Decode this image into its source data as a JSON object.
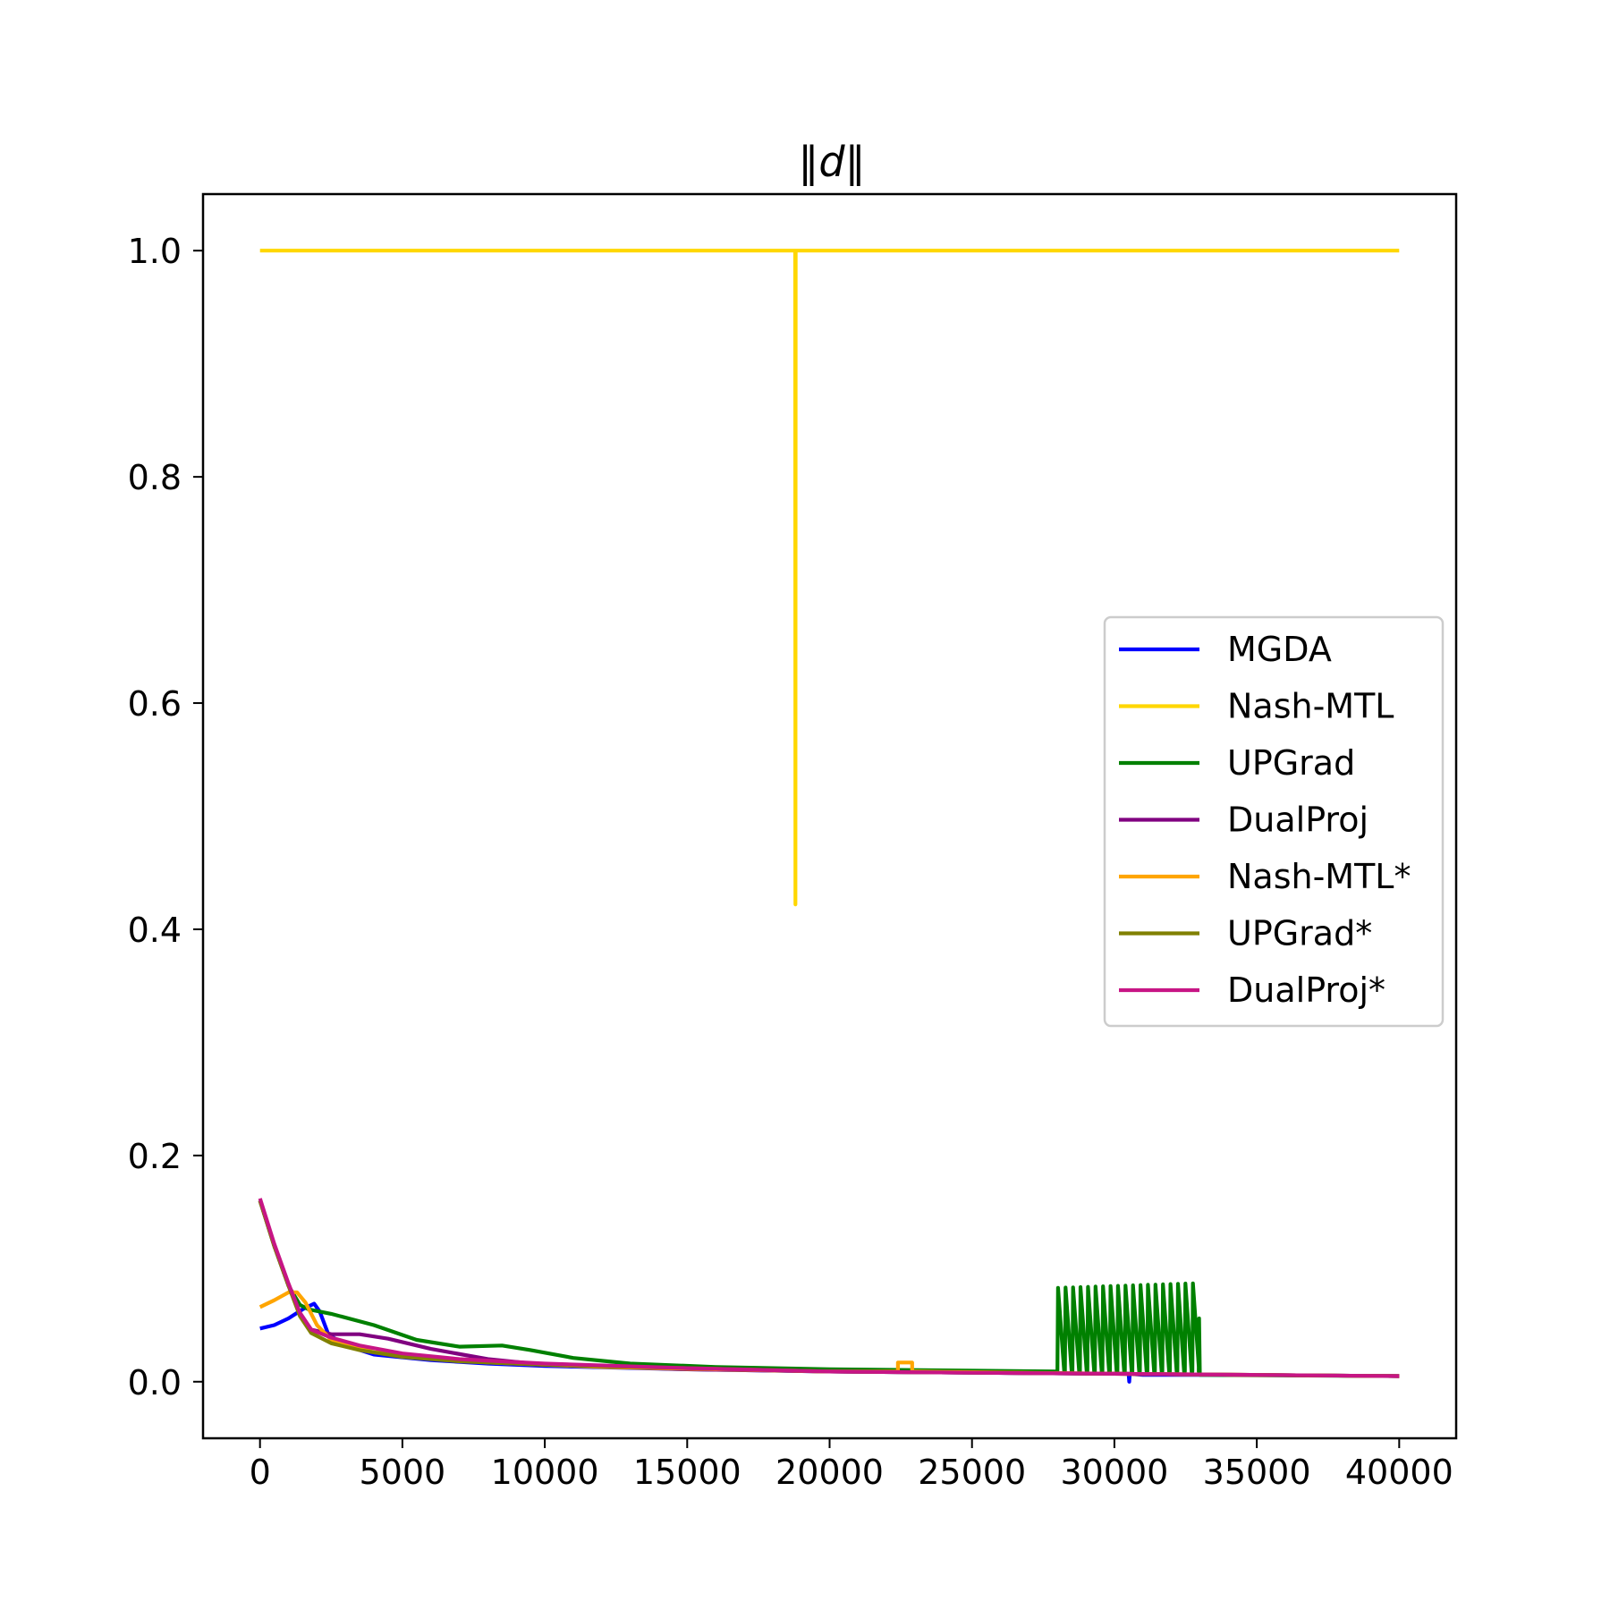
{
  "chart_data": {
    "type": "line",
    "title": "‖d‖",
    "xlabel": "",
    "ylabel": "",
    "xlim": [
      -2000,
      42000
    ],
    "ylim": [
      -0.05,
      1.05
    ],
    "xticks": [
      0,
      5000,
      10000,
      15000,
      20000,
      25000,
      30000,
      35000,
      40000
    ],
    "xtick_labels": [
      "0",
      "5000",
      "10000",
      "15000",
      "20000",
      "25000",
      "30000",
      "35000",
      "40000"
    ],
    "yticks": [
      0.0,
      0.2,
      0.4,
      0.6,
      0.8,
      1.0
    ],
    "ytick_labels": [
      "0.0",
      "0.2",
      "0.4",
      "0.6",
      "0.8",
      "1.0"
    ],
    "grid": false,
    "legend_position": "center-right",
    "series": [
      {
        "name": "MGDA",
        "color": "#0000ff",
        "x": [
          0,
          500,
          1000,
          1500,
          1900,
          2100,
          2400,
          3000,
          4000,
          6000,
          8000,
          10000,
          15000,
          20000,
          25000,
          30000,
          30500,
          30520,
          30540,
          31000,
          35000,
          40000
        ],
        "y": [
          0.047,
          0.05,
          0.056,
          0.064,
          0.069,
          0.062,
          0.042,
          0.032,
          0.024,
          0.019,
          0.016,
          0.014,
          0.011,
          0.009,
          0.008,
          0.007,
          0.007,
          0.0,
          0.007,
          0.006,
          0.006,
          0.005
        ]
      },
      {
        "name": "Nash-MTL",
        "color": "#ffd700",
        "x": [
          0,
          18790,
          18800,
          18810,
          40000
        ],
        "y": [
          1.0,
          1.0,
          0.422,
          1.0,
          1.0
        ]
      },
      {
        "name": "UPGrad",
        "color": "#008000",
        "x": [
          0,
          500,
          1000,
          1400,
          1700,
          2500,
          4000,
          5500,
          7000,
          8500,
          9500,
          11000,
          13000,
          16000,
          20000,
          24000,
          28000
        ],
        "y": [
          0.16,
          0.12,
          0.085,
          0.068,
          0.064,
          0.06,
          0.05,
          0.037,
          0.031,
          0.032,
          0.028,
          0.021,
          0.016,
          0.013,
          0.011,
          0.01,
          0.009
        ],
        "oscillation": {
          "x_start": 28000,
          "x_end": 33000,
          "cycles": 19,
          "low": 0.009,
          "high_start": 0.083,
          "high_end": 0.087,
          "tail_high": 0.056
        },
        "tail": {
          "x": [
            33000,
            40000
          ],
          "y": [
            0.006,
            0.005
          ]
        }
      },
      {
        "name": "DualProj",
        "color": "#800080",
        "x": [
          0,
          500,
          1000,
          1400,
          1800,
          2500,
          3500,
          4500,
          6000,
          8000,
          10000,
          15000,
          20000,
          25000,
          30000,
          35000,
          40000
        ],
        "y": [
          0.16,
          0.12,
          0.085,
          0.06,
          0.046,
          0.042,
          0.042,
          0.038,
          0.029,
          0.02,
          0.015,
          0.011,
          0.009,
          0.008,
          0.007,
          0.006,
          0.005
        ]
      },
      {
        "name": "Nash-MTL*",
        "color": "#ffa500",
        "x": [
          0,
          500,
          1000,
          1300,
          1600,
          2000,
          2500,
          4000,
          8000,
          12000,
          16000,
          20000,
          22400,
          22400,
          22900,
          22900,
          23000,
          30000,
          40000
        ],
        "y": [
          0.066,
          0.072,
          0.079,
          0.079,
          0.07,
          0.05,
          0.037,
          0.026,
          0.017,
          0.013,
          0.011,
          0.009,
          0.009,
          0.017,
          0.017,
          0.009,
          0.009,
          0.007,
          0.005
        ]
      },
      {
        "name": "UPGrad*",
        "color": "#808000",
        "x": [
          0,
          500,
          1000,
          1400,
          1800,
          2500,
          3500,
          5000,
          7000,
          10000,
          15000,
          20000,
          25000,
          30000,
          35000,
          40000
        ],
        "y": [
          0.16,
          0.12,
          0.085,
          0.058,
          0.043,
          0.034,
          0.028,
          0.022,
          0.018,
          0.015,
          0.012,
          0.009,
          0.008,
          0.007,
          0.006,
          0.005
        ]
      },
      {
        "name": "DualProj*",
        "color": "#c71585",
        "x": [
          0,
          500,
          1000,
          1400,
          1800,
          2500,
          3500,
          5000,
          7000,
          10000,
          15000,
          20000,
          25000,
          30000,
          35000,
          40000
        ],
        "y": [
          0.162,
          0.122,
          0.087,
          0.061,
          0.046,
          0.039,
          0.032,
          0.025,
          0.02,
          0.016,
          0.012,
          0.009,
          0.008,
          0.007,
          0.006,
          0.005
        ]
      }
    ]
  }
}
